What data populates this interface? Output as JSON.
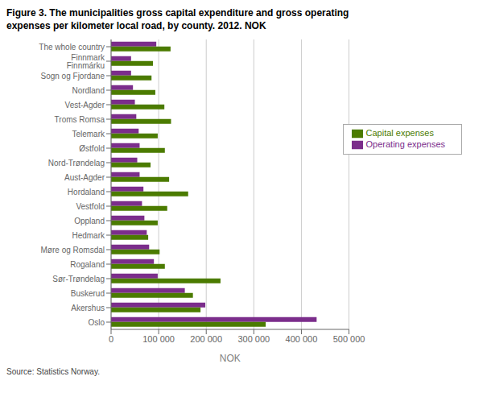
{
  "chart_data": {
    "type": "bar",
    "orientation": "horizontal",
    "title": "Figure 3. The municipalities gross capital expenditure and gross operating\nexpenses per kilometer local road, by county. 2012. NOK",
    "annotations": [
      "Source: Statistics Norway."
    ],
    "xlabel": "NOK",
    "categories": [
      "The whole country",
      "Finnmark Finnmárku",
      "Sogn og Fjordane",
      "Nordland",
      "Vest-Agder",
      "Troms Romsa",
      "Telemark",
      "Østfold",
      "Nord-Trøndelag",
      "Aust-Agder",
      "Hordaland",
      "Vestfold",
      "Oppland",
      "Hedmark",
      "Møre og Romsdal",
      "Rogaland",
      "Sør-Trøndelag",
      "Buskerud",
      "Akershus",
      "Oslo"
    ],
    "series": [
      {
        "name": "Operating expenses",
        "color": "#7B2D8B",
        "values": [
          95000,
          42000,
          42000,
          46000,
          50000,
          53000,
          58000,
          60000,
          55000,
          60000,
          68000,
          65000,
          70000,
          75000,
          80000,
          90000,
          98000,
          155000,
          198000,
          432000
        ]
      },
      {
        "name": "Capital expenses",
        "color": "#4B7B00",
        "values": [
          125000,
          88000,
          85000,
          93000,
          112000,
          126000,
          98000,
          113000,
          83000,
          122000,
          162000,
          118000,
          98000,
          78000,
          102000,
          113000,
          230000,
          172000,
          188000,
          325000
        ]
      }
    ],
    "xlim": [
      0,
      500000
    ],
    "xticks": [
      0,
      {
        "value": 100000,
        "label": "100 000"
      },
      {
        "value": 200000,
        "label": "200 000"
      },
      {
        "value": 300000,
        "label": "300 000"
      },
      {
        "value": 400000,
        "label": "400 000"
      },
      {
        "value": 500000,
        "label": "500 000"
      }
    ],
    "grid": true,
    "legend": "upper right"
  }
}
